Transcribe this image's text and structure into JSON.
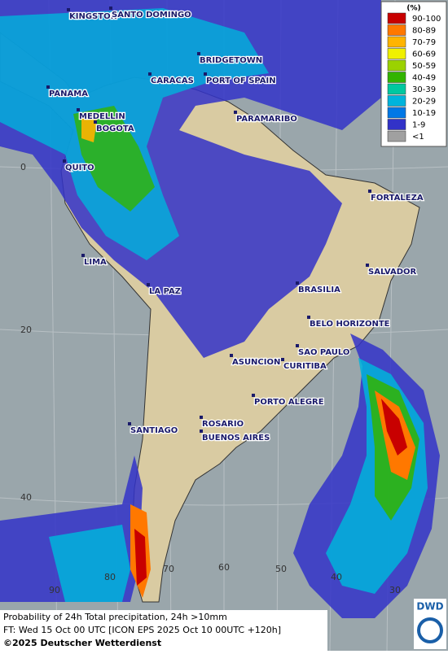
{
  "map": {
    "legend": {
      "unit": "(%)",
      "items": [
        {
          "label": "90-100",
          "color": "#c80000"
        },
        {
          "label": "80-89",
          "color": "#ff7800"
        },
        {
          "label": "70-79",
          "color": "#ffb400"
        },
        {
          "label": "60-69",
          "color": "#f0f000"
        },
        {
          "label": "50-59",
          "color": "#9bd200"
        },
        {
          "label": "40-49",
          "color": "#32b400"
        },
        {
          "label": "30-39",
          "color": "#00c8a0"
        },
        {
          "label": "20-29",
          "color": "#00b4dc"
        },
        {
          "label": "10-19",
          "color": "#0078e6"
        },
        {
          "label": "1-9",
          "color": "#3232c8"
        },
        {
          "label": "<1",
          "color": "#a0a0a0"
        }
      ]
    },
    "cities": [
      "KINGSTON",
      "SANTO DOMINGO",
      "BRIDGETOWN",
      "CARACAS",
      "PORT OF SPAIN",
      "PANAMA",
      "MEDELLIN",
      "BOGOTA",
      "PARAMARIBO",
      "QUITO",
      "FORTALEZA",
      "LIMA",
      "SALVADOR",
      "BRASILIA",
      "LA PAZ",
      "BELO HORIZONTE",
      "SAO PAULO",
      "ASUNCION",
      "CURITIBA",
      "PORTO ALEGRE",
      "ROSARIO",
      "BUENOS AIRES",
      "SANTIAGO"
    ],
    "lat_labels": [
      "0",
      "20",
      "40"
    ],
    "lon_labels": [
      "90",
      "80",
      "70",
      "60",
      "50",
      "40",
      "30"
    ],
    "footer": {
      "line1": "Probability of 24h Total precipitation, 24h >10mm",
      "line2": "FT: Wed 15 Oct 00 UTC [ICON EPS 2025 Oct 10 00UTC +120h]",
      "line3": "©2025 Deutscher Wetterdienst"
    },
    "logo": "DWD"
  }
}
